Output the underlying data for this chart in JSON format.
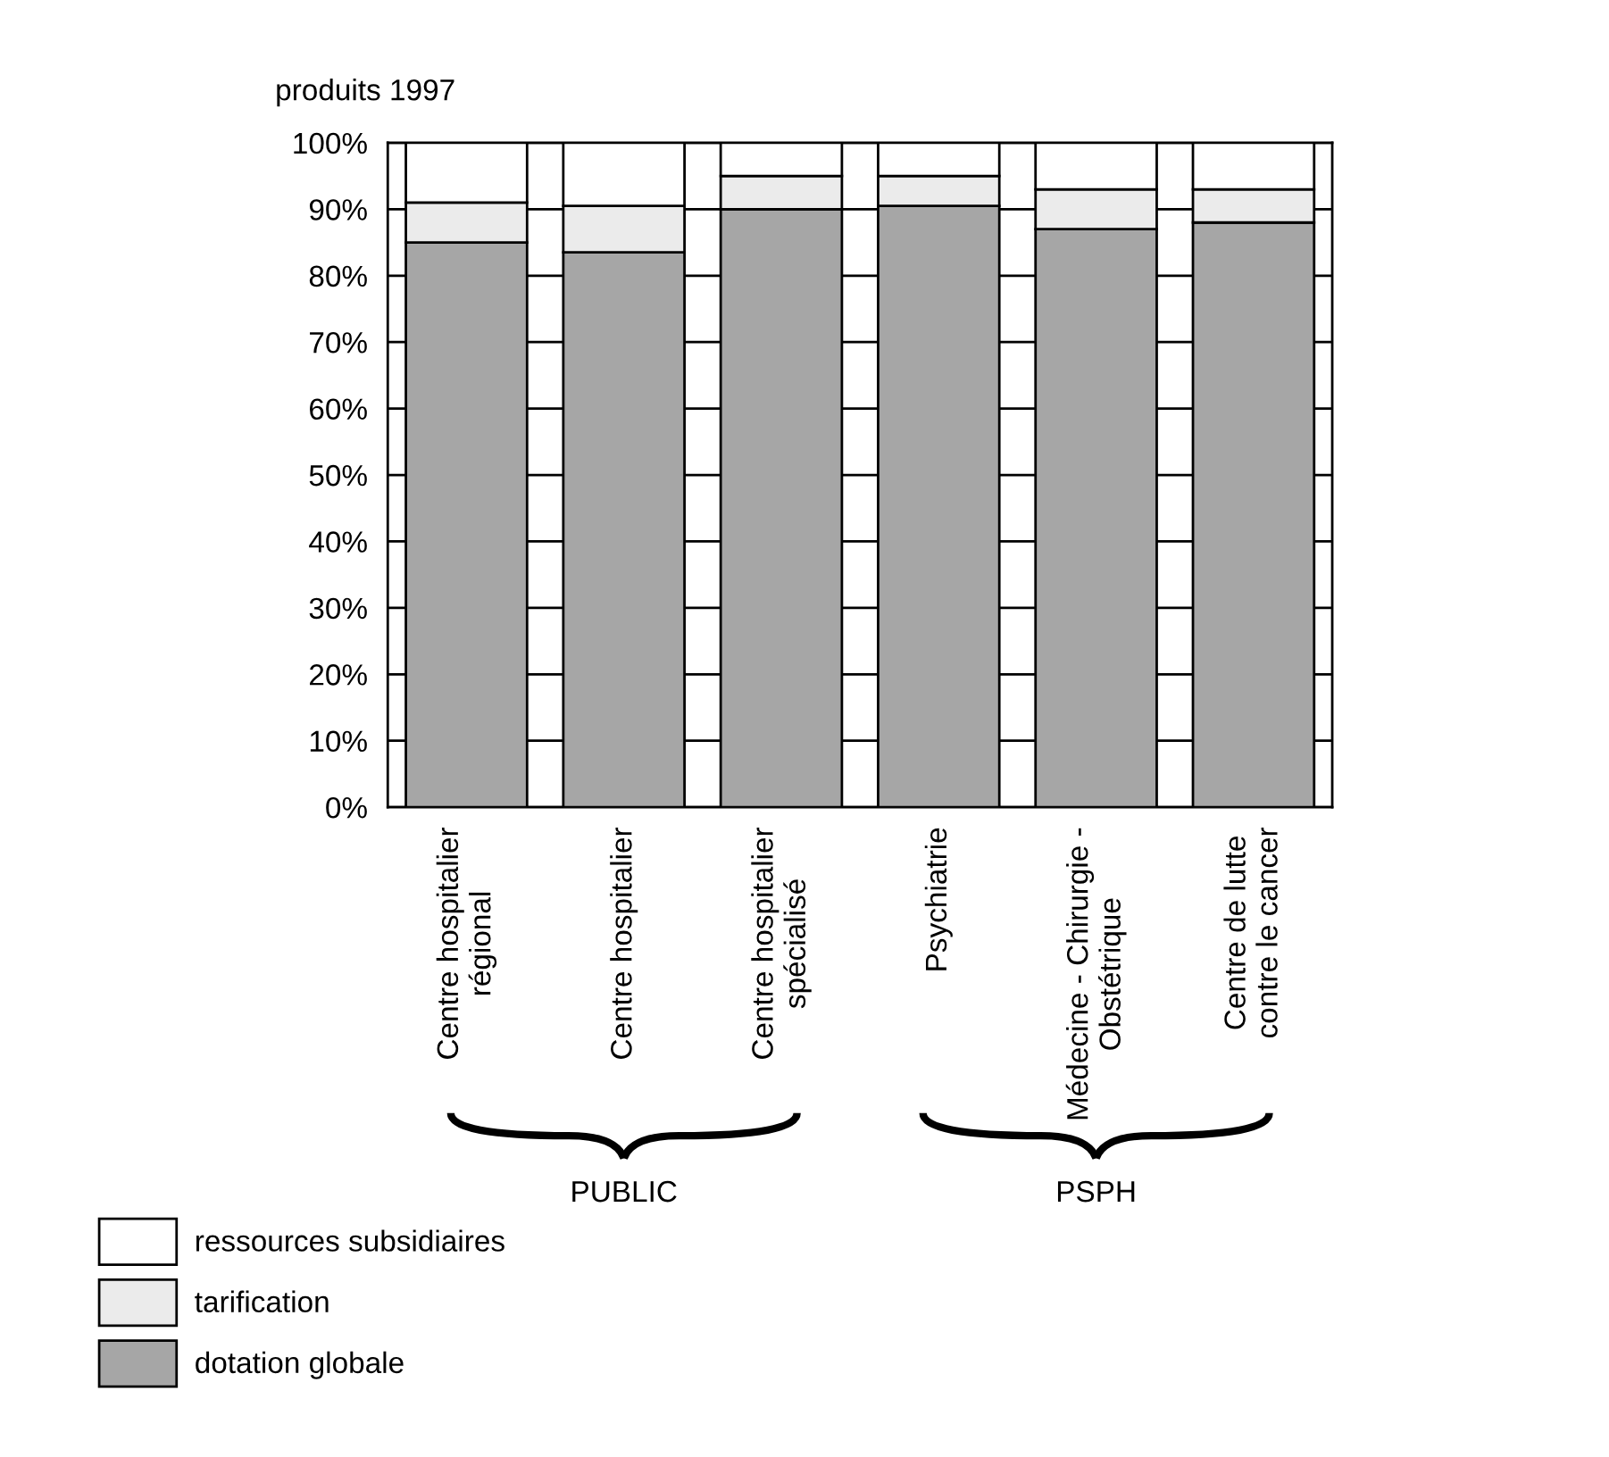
{
  "chart_data": {
    "type": "bar",
    "stacked": true,
    "ylabel": "produits 1997",
    "categories": [
      "Centre hospitalier\nrégional",
      "Centre hospitalier",
      "Centre hospitalier\nspécialisé",
      "Psychiatrie",
      "Médecine - Chirurgie -\nObstétrique",
      "Centre de lutte\ncontre le cancer"
    ],
    "series": [
      {
        "name": "dotation globale",
        "color": "#a6a6a6",
        "values": [
          85,
          83.5,
          90,
          90.5,
          87,
          88
        ]
      },
      {
        "name": "tarification",
        "color": "#ebebeb",
        "values": [
          6,
          7,
          5,
          4.5,
          6,
          5
        ]
      },
      {
        "name": "ressources subsidiaires",
        "color": "#ffffff",
        "values": [
          9,
          9.5,
          5,
          5,
          7,
          7
        ]
      }
    ],
    "ylim": [
      0,
      100
    ],
    "yticks": [
      {
        "value": 0,
        "label": "0%"
      },
      {
        "value": 10,
        "label": "10%"
      },
      {
        "value": 20,
        "label": "20%"
      },
      {
        "value": 30,
        "label": "30%"
      },
      {
        "value": 40,
        "label": "40%"
      },
      {
        "value": 50,
        "label": "50%"
      },
      {
        "value": 60,
        "label": "60%"
      },
      {
        "value": 70,
        "label": "70%"
      },
      {
        "value": 80,
        "label": "80%"
      },
      {
        "value": 90,
        "label": "90%"
      },
      {
        "value": 100,
        "label": "100%"
      }
    ],
    "grid": "y",
    "legend": "bottom left",
    "annotations": [
      "PUBLIC",
      "PSPH"
    ]
  }
}
